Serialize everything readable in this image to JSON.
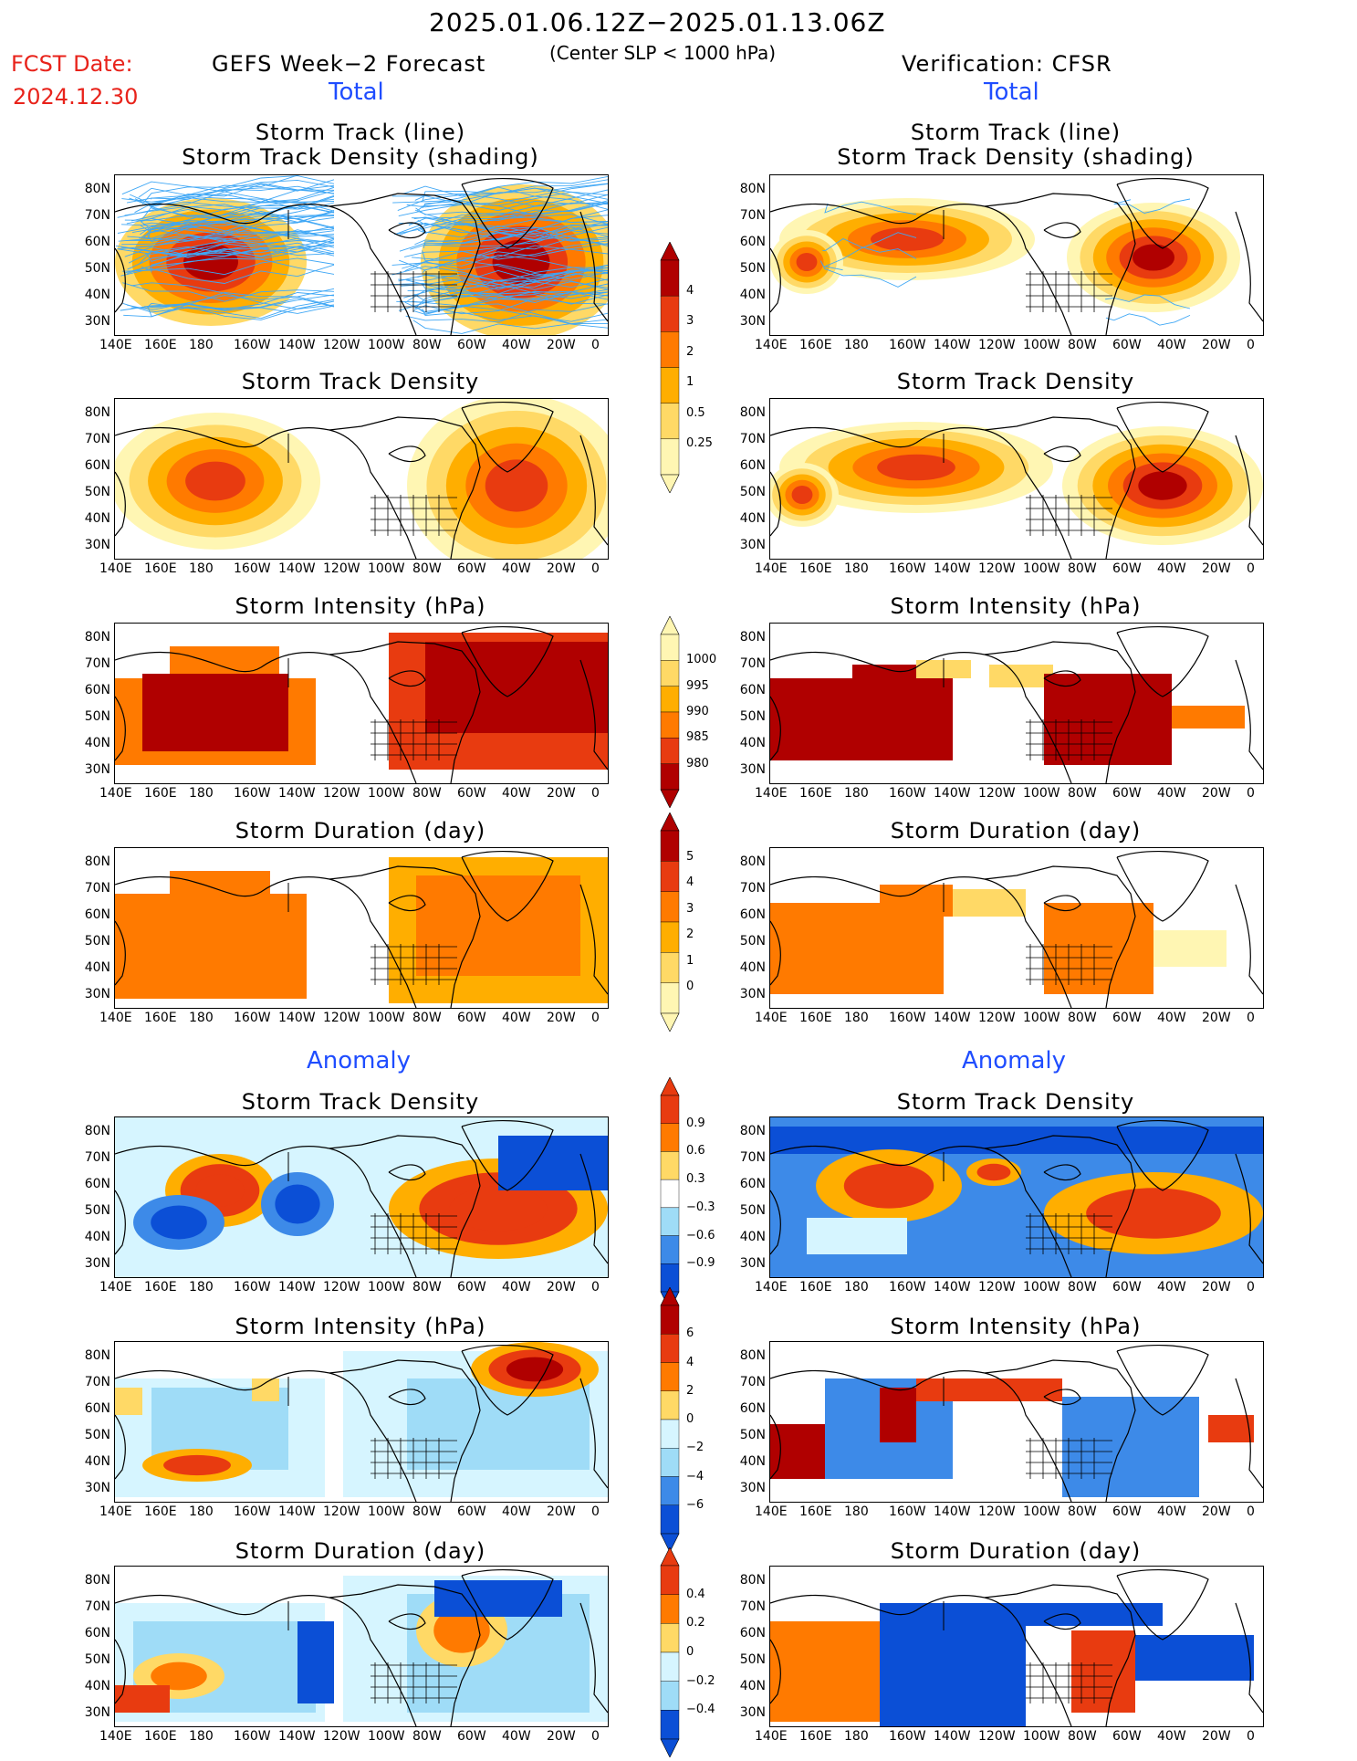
{
  "header": {
    "period": "2025.01.06.12Z−2025.01.13.06Z",
    "criterion": "(Center SLP < 1000 hPa)",
    "fcst_label": "FCST Date:",
    "fcst_date": "2024.12.30",
    "left_model": "GEFS Week−2 Forecast",
    "right_model": "Verification: CFSR",
    "total": "Total",
    "anomaly": "Anomaly"
  },
  "panels": {
    "track_title_1": "Storm Track (line)",
    "track_title_2": "Storm Track Density (shading)",
    "density": "Storm Track Density",
    "intensity": "Storm Intensity (hPa)",
    "duration": "Storm Duration (day)"
  },
  "axes": {
    "lat_labels": [
      "80N",
      "70N",
      "60N",
      "50N",
      "40N",
      "30N"
    ],
    "lon_labels": [
      "140E",
      "160E",
      "180",
      "160W",
      "140W",
      "120W",
      "100W",
      "80W",
      "60W",
      "40W",
      "20W",
      "0"
    ]
  },
  "colorbars": {
    "density_total": [
      "4",
      "3",
      "2",
      "1",
      "0.5",
      "0.25"
    ],
    "intensity_total": [
      "1000",
      "995",
      "990",
      "985",
      "980"
    ],
    "duration_total": [
      "5",
      "4",
      "3",
      "2",
      "1",
      "0"
    ],
    "density_anom": [
      "0.9",
      "0.6",
      "0.3",
      "−0.3",
      "−0.6",
      "−0.9"
    ],
    "intensity_anom": [
      "6",
      "4",
      "2",
      "0",
      "−2",
      "−4",
      "−6"
    ],
    "duration_anom": [
      "0.4",
      "0.2",
      "0",
      "−0.2",
      "−0.4"
    ]
  },
  "colors": {
    "warm": [
      "#fff6b3",
      "#ffd966",
      "#ffae00",
      "#ff7a00",
      "#e83b10",
      "#b00000"
    ],
    "cool": [
      "#d6f5ff",
      "#9fdcf7",
      "#3d8ae8",
      "#0b4fd6"
    ],
    "track_line": "#3fa7f5",
    "title_red": "#e8231b",
    "title_blue": "#1f4dff"
  }
}
